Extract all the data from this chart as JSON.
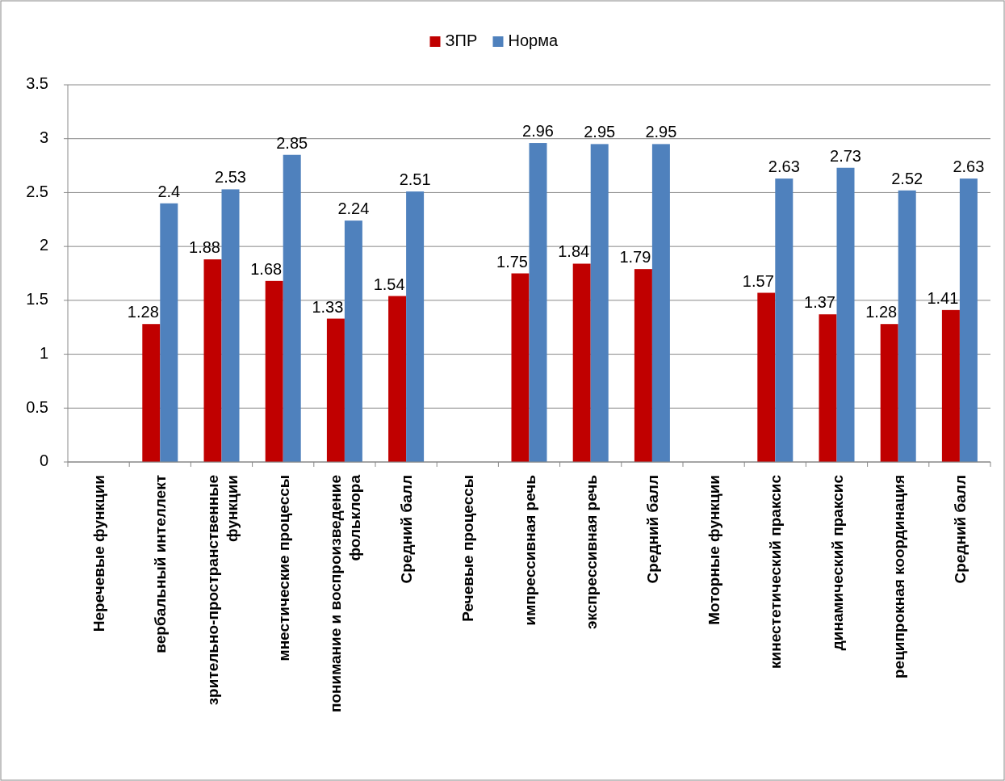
{
  "chart_data": {
    "type": "bar",
    "categories": [
      "Неречевые функции",
      "вербальный интеллект",
      "зрительно-пространственные функции",
      "мнестические процессы",
      "понимание и воспроизведение фольклора",
      "Средний балл",
      "Речевые процессы",
      "импрессивная речь",
      "экспрессивная речь",
      "Средний балл",
      "Моторные функции",
      "кинестетический праксис",
      "динамический праксис",
      "реципрокная координация",
      "Средний балл"
    ],
    "series": [
      {
        "name": "ЗПР",
        "color": "#c00000",
        "values": [
          null,
          1.28,
          1.88,
          1.68,
          1.33,
          1.54,
          null,
          1.75,
          1.84,
          1.79,
          null,
          1.57,
          1.37,
          1.28,
          1.41
        ]
      },
      {
        "name": "Норма",
        "color": "#4f81bd",
        "values": [
          null,
          2.4,
          2.53,
          2.85,
          2.24,
          2.51,
          null,
          2.96,
          2.95,
          2.95,
          null,
          2.63,
          2.73,
          2.52,
          2.63
        ]
      }
    ],
    "ylim": [
      0,
      3.5
    ],
    "yticks": [
      0,
      0.5,
      1,
      1.5,
      2,
      2.5,
      3,
      3.5
    ],
    "grid": "y",
    "legend": "top",
    "data_labels": true
  }
}
